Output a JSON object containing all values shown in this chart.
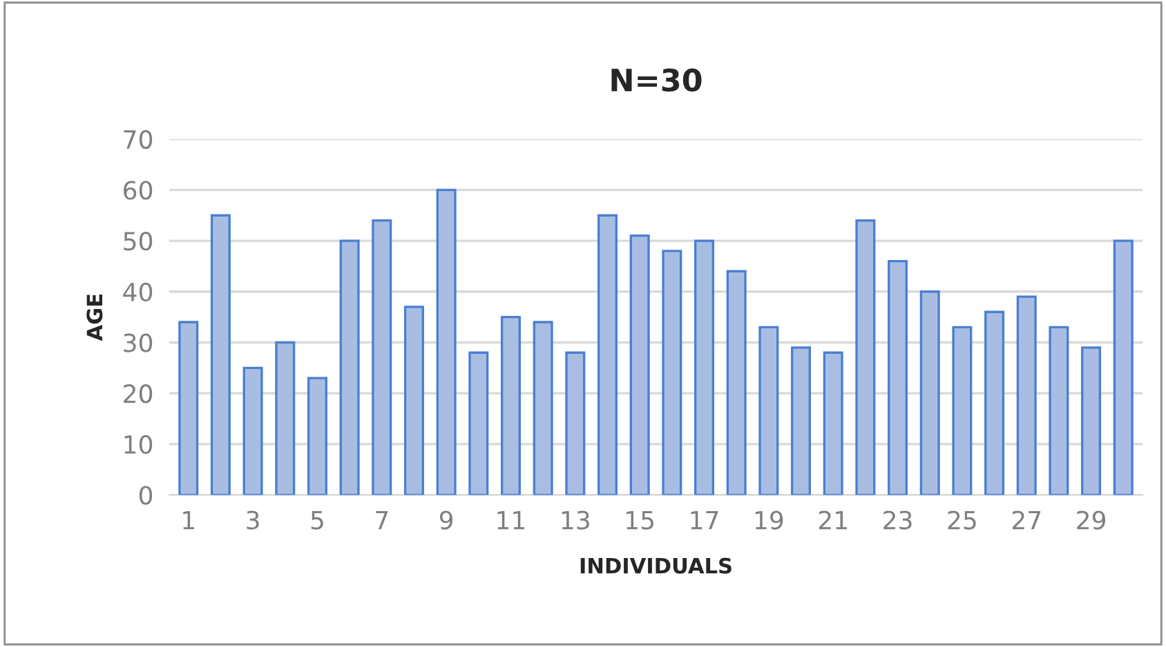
{
  "chart_data": {
    "type": "bar",
    "title": "N=30",
    "xlabel": "INDIVIDUALS",
    "ylabel": "AGE",
    "categories": [
      "1",
      null,
      "3",
      null,
      "5",
      null,
      "7",
      null,
      "9",
      null,
      "11",
      null,
      "13",
      null,
      "15",
      null,
      "17",
      null,
      "19",
      null,
      "21",
      null,
      "23",
      null,
      "25",
      null,
      "27",
      null,
      "29",
      null
    ],
    "values": [
      34,
      55,
      25,
      30,
      23,
      50,
      54,
      37,
      60,
      28,
      35,
      34,
      28,
      55,
      51,
      48,
      50,
      44,
      33,
      29,
      28,
      54,
      46,
      40,
      33,
      36,
      39,
      33,
      29,
      50
    ],
    "color": "#a9bde3",
    "ylim": [
      0,
      70
    ],
    "yticks": [
      0,
      10,
      20,
      30,
      40,
      50,
      60,
      70
    ],
    "grid": "y"
  }
}
